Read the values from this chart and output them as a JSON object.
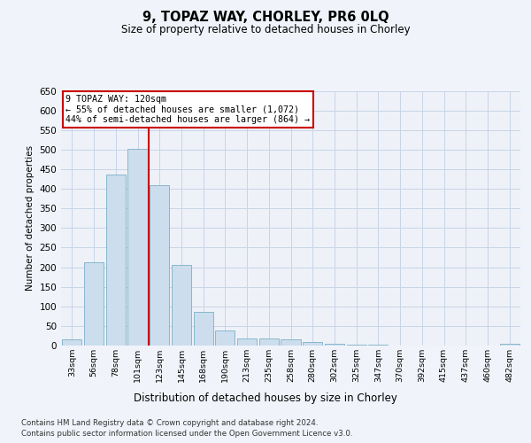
{
  "title": "9, TOPAZ WAY, CHORLEY, PR6 0LQ",
  "subtitle": "Size of property relative to detached houses in Chorley",
  "xlabel": "Distribution of detached houses by size in Chorley",
  "ylabel": "Number of detached properties",
  "categories": [
    "33sqm",
    "56sqm",
    "78sqm",
    "101sqm",
    "123sqm",
    "145sqm",
    "168sqm",
    "190sqm",
    "213sqm",
    "235sqm",
    "258sqm",
    "280sqm",
    "302sqm",
    "325sqm",
    "347sqm",
    "370sqm",
    "392sqm",
    "415sqm",
    "437sqm",
    "460sqm",
    "482sqm"
  ],
  "values": [
    15,
    213,
    437,
    503,
    410,
    205,
    85,
    38,
    18,
    18,
    15,
    10,
    5,
    2,
    2,
    1,
    1,
    1,
    1,
    1,
    5
  ],
  "bar_color": "#ccdded",
  "bar_edge_color": "#7aafc8",
  "grid_color": "#c8d4e8",
  "vline_color": "#cc0000",
  "annotation_text": "9 TOPAZ WAY: 120sqm\n← 55% of detached houses are smaller (1,072)\n44% of semi-detached houses are larger (864) →",
  "annotation_box_color": "#ffffff",
  "annotation_box_edge": "#cc0000",
  "ylim": [
    0,
    650
  ],
  "yticks": [
    0,
    50,
    100,
    150,
    200,
    250,
    300,
    350,
    400,
    450,
    500,
    550,
    600,
    650
  ],
  "footer_line1": "Contains HM Land Registry data © Crown copyright and database right 2024.",
  "footer_line2": "Contains public sector information licensed under the Open Government Licence v3.0.",
  "bg_color": "#f0f4fa",
  "plot_bg_color": "#eef2f8"
}
